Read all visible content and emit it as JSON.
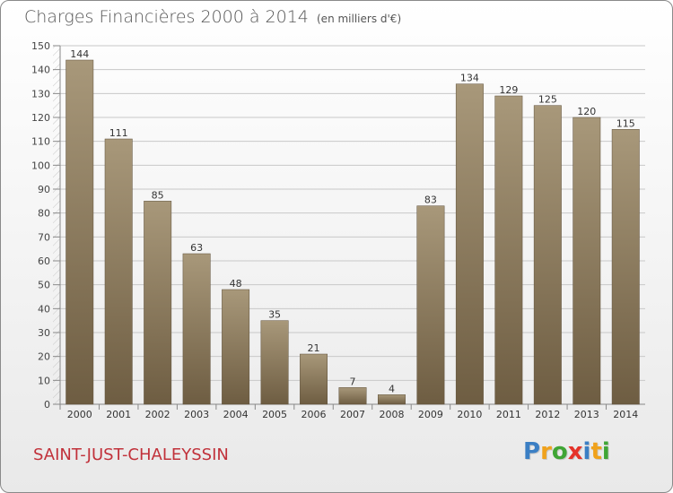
{
  "chart_data": {
    "type": "bar",
    "title": "Charges Financières 2000 à 2014",
    "subtitle": "(en milliers d'€)",
    "categories": [
      "2000",
      "2001",
      "2002",
      "2003",
      "2004",
      "2005",
      "2006",
      "2007",
      "2008",
      "2009",
      "2010",
      "2011",
      "2012",
      "2013",
      "2014"
    ],
    "values": [
      144,
      111,
      85,
      63,
      48,
      35,
      21,
      7,
      4,
      83,
      134,
      129,
      125,
      120,
      115
    ],
    "ylim": [
      0,
      150
    ],
    "yticks": [
      0,
      10,
      20,
      30,
      40,
      50,
      60,
      70,
      80,
      90,
      100,
      110,
      120,
      130,
      140,
      150
    ],
    "grid": true,
    "bar_color": "#8c7a5c"
  },
  "footer": {
    "city": "SAINT-JUST-CHALEYSSIN"
  },
  "brand": {
    "name": "Proxiti",
    "letters": [
      {
        "char": "P",
        "color": "#3b7fc4"
      },
      {
        "char": "r",
        "color": "#f0a21c"
      },
      {
        "char": "o",
        "color": "#3fa535"
      },
      {
        "char": "x",
        "color": "#e5332a"
      },
      {
        "char": "i",
        "color": "#3b7fc4"
      },
      {
        "char": "t",
        "color": "#f0a21c"
      },
      {
        "char": "i",
        "color": "#3fa535"
      }
    ]
  }
}
